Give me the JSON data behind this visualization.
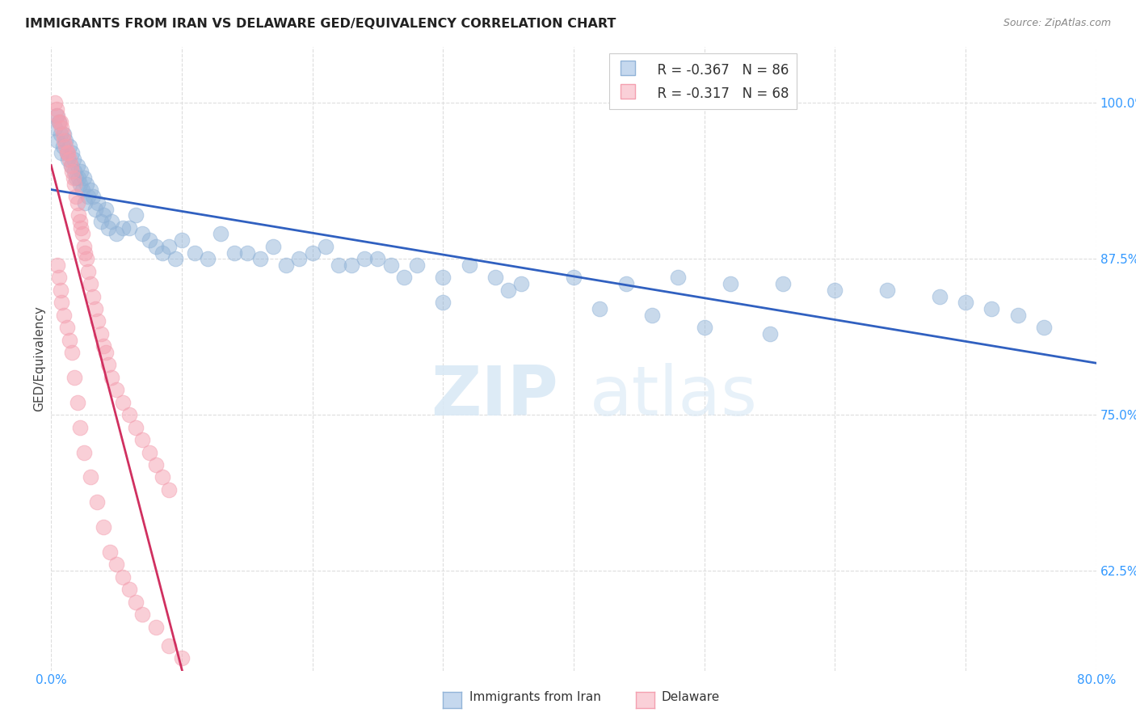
{
  "title": "IMMIGRANTS FROM IRAN VS DELAWARE GED/EQUIVALENCY CORRELATION CHART",
  "source": "Source: ZipAtlas.com",
  "ylabel": "GED/Equivalency",
  "yticks": [
    0.625,
    0.75,
    0.875,
    1.0
  ],
  "ytick_labels": [
    "62.5%",
    "75.0%",
    "87.5%",
    "100.0%"
  ],
  "legend_blue_r": "R = -0.367",
  "legend_blue_n": "N = 86",
  "legend_pink_r": "R = -0.317",
  "legend_pink_n": "N = 68",
  "legend_label_blue": "Immigrants from Iran",
  "legend_label_pink": "Delaware",
  "blue_color": "#92B4D8",
  "pink_color": "#F4A0B0",
  "line_blue": "#3060C0",
  "line_pink": "#D03060",
  "line_dashed_color": "#E0A0B0",
  "background": "#FFFFFF",
  "x_min": 0.0,
  "x_max": 0.8,
  "y_min": 0.545,
  "y_max": 1.045,
  "blue_x": [
    0.003,
    0.004,
    0.005,
    0.006,
    0.007,
    0.008,
    0.009,
    0.01,
    0.011,
    0.012,
    0.013,
    0.014,
    0.015,
    0.016,
    0.017,
    0.018,
    0.019,
    0.02,
    0.021,
    0.022,
    0.023,
    0.024,
    0.025,
    0.026,
    0.027,
    0.028,
    0.03,
    0.032,
    0.034,
    0.036,
    0.038,
    0.04,
    0.042,
    0.044,
    0.046,
    0.05,
    0.055,
    0.06,
    0.065,
    0.07,
    0.075,
    0.08,
    0.085,
    0.09,
    0.095,
    0.1,
    0.11,
    0.12,
    0.13,
    0.14,
    0.15,
    0.16,
    0.17,
    0.18,
    0.19,
    0.2,
    0.21,
    0.22,
    0.23,
    0.24,
    0.25,
    0.26,
    0.27,
    0.28,
    0.3,
    0.32,
    0.34,
    0.36,
    0.4,
    0.44,
    0.48,
    0.52,
    0.56,
    0.6,
    0.64,
    0.68,
    0.7,
    0.72,
    0.74,
    0.76,
    0.3,
    0.35,
    0.42,
    0.46,
    0.5,
    0.55
  ],
  "blue_y": [
    0.98,
    0.99,
    0.97,
    0.985,
    0.975,
    0.96,
    0.965,
    0.975,
    0.97,
    0.96,
    0.955,
    0.965,
    0.95,
    0.96,
    0.955,
    0.945,
    0.94,
    0.95,
    0.94,
    0.935,
    0.945,
    0.93,
    0.94,
    0.92,
    0.935,
    0.925,
    0.93,
    0.925,
    0.915,
    0.92,
    0.905,
    0.91,
    0.915,
    0.9,
    0.905,
    0.895,
    0.9,
    0.9,
    0.91,
    0.895,
    0.89,
    0.885,
    0.88,
    0.885,
    0.875,
    0.89,
    0.88,
    0.875,
    0.895,
    0.88,
    0.88,
    0.875,
    0.885,
    0.87,
    0.875,
    0.88,
    0.885,
    0.87,
    0.87,
    0.875,
    0.875,
    0.87,
    0.86,
    0.87,
    0.86,
    0.87,
    0.86,
    0.855,
    0.86,
    0.855,
    0.86,
    0.855,
    0.855,
    0.85,
    0.85,
    0.845,
    0.84,
    0.835,
    0.83,
    0.82,
    0.84,
    0.85,
    0.835,
    0.83,
    0.82,
    0.815
  ],
  "pink_x": [
    0.003,
    0.004,
    0.005,
    0.006,
    0.007,
    0.008,
    0.009,
    0.01,
    0.011,
    0.012,
    0.013,
    0.014,
    0.015,
    0.016,
    0.017,
    0.018,
    0.019,
    0.02,
    0.021,
    0.022,
    0.023,
    0.024,
    0.025,
    0.026,
    0.027,
    0.028,
    0.03,
    0.032,
    0.034,
    0.036,
    0.038,
    0.04,
    0.042,
    0.044,
    0.046,
    0.05,
    0.055,
    0.06,
    0.065,
    0.07,
    0.075,
    0.08,
    0.085,
    0.09,
    0.005,
    0.006,
    0.007,
    0.008,
    0.01,
    0.012,
    0.014,
    0.016,
    0.018,
    0.02,
    0.022,
    0.025,
    0.03,
    0.035,
    0.04,
    0.045,
    0.05,
    0.055,
    0.06,
    0.065,
    0.07,
    0.08,
    0.09,
    0.1
  ],
  "pink_y": [
    1.0,
    0.995,
    0.99,
    0.985,
    0.985,
    0.98,
    0.975,
    0.97,
    0.965,
    0.96,
    0.96,
    0.955,
    0.95,
    0.945,
    0.94,
    0.935,
    0.925,
    0.92,
    0.91,
    0.905,
    0.9,
    0.895,
    0.885,
    0.88,
    0.875,
    0.865,
    0.855,
    0.845,
    0.835,
    0.825,
    0.815,
    0.805,
    0.8,
    0.79,
    0.78,
    0.77,
    0.76,
    0.75,
    0.74,
    0.73,
    0.72,
    0.71,
    0.7,
    0.69,
    0.87,
    0.86,
    0.85,
    0.84,
    0.83,
    0.82,
    0.81,
    0.8,
    0.78,
    0.76,
    0.74,
    0.72,
    0.7,
    0.68,
    0.66,
    0.64,
    0.63,
    0.62,
    0.61,
    0.6,
    0.59,
    0.58,
    0.565,
    0.555
  ]
}
